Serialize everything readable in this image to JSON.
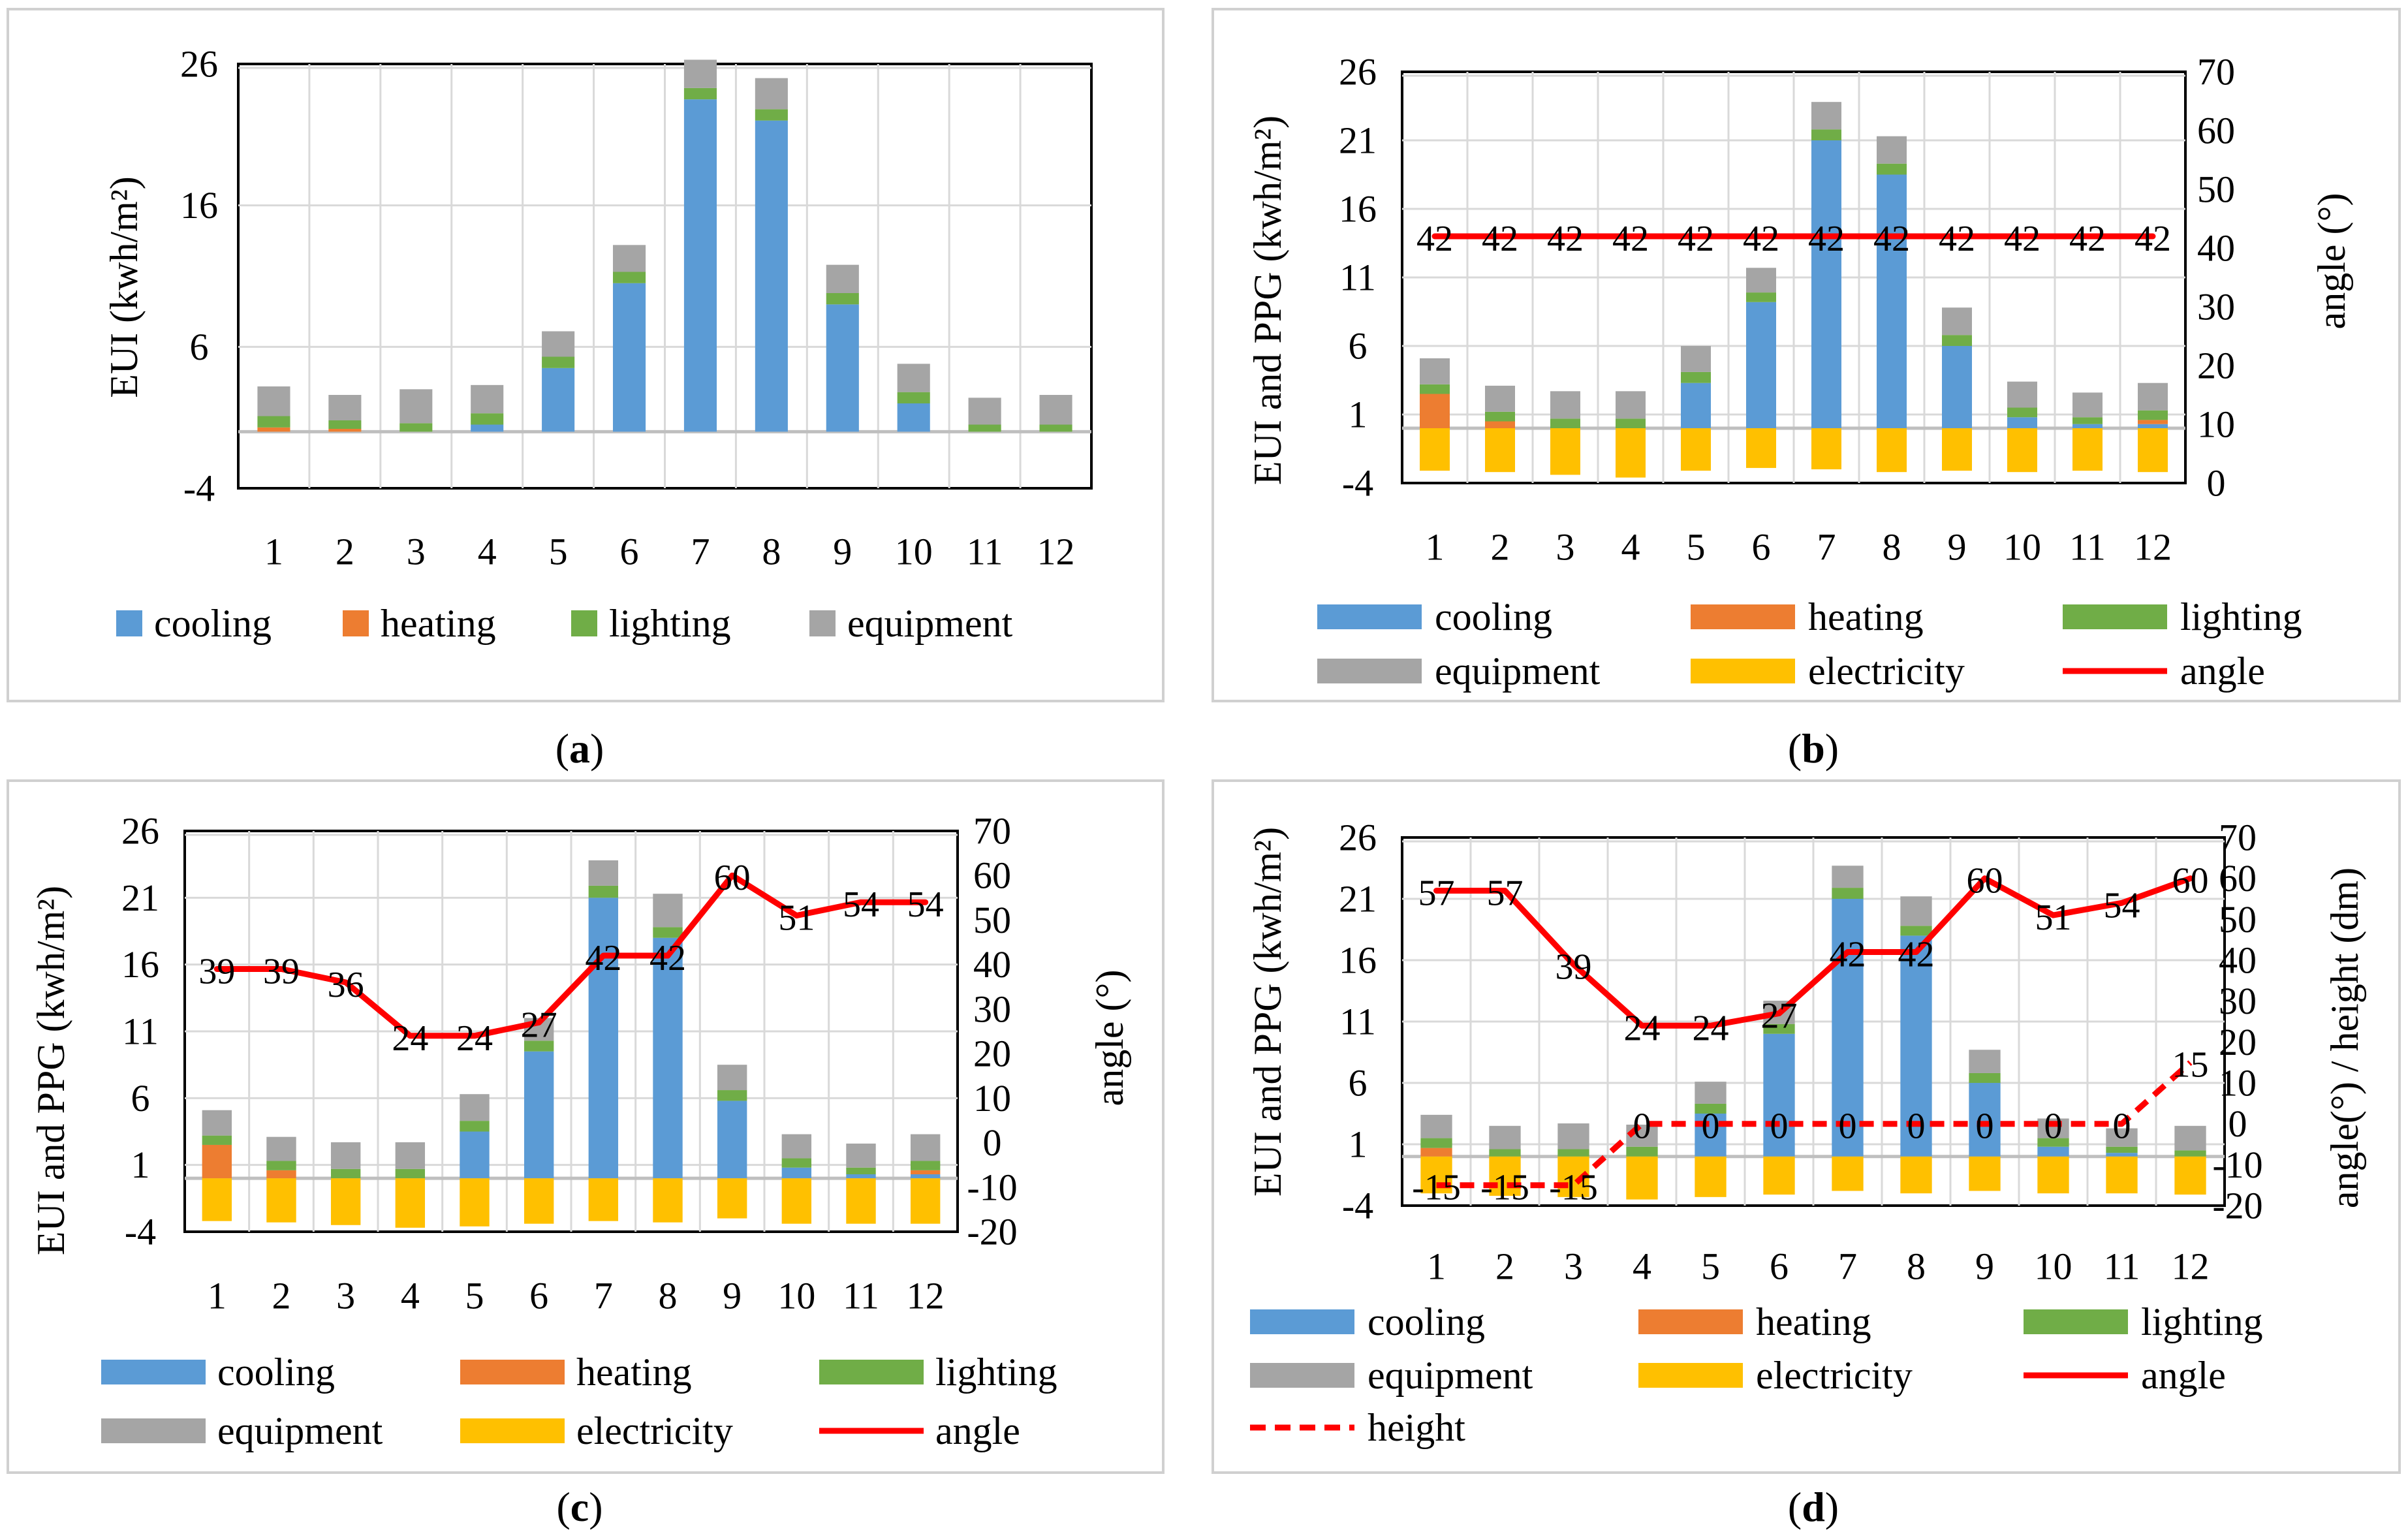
{
  "colors": {
    "cooling": "#5B9BD5",
    "heating": "#ED7D31",
    "lighting": "#70AD47",
    "equipment": "#A5A5A5",
    "electricity": "#FFC000",
    "angle": "#FF0000",
    "height": "#FF0000",
    "grid": "#D9D9D9",
    "zero": "#BFBFBF",
    "panel_border": "#D0D0D0"
  },
  "chart_data": [
    {
      "panel": "a",
      "caption": "(a)",
      "caption_letter": "a",
      "type": "bar",
      "stacked": true,
      "title": "",
      "xlabel": "",
      "ylabel": "EUI (kwh/m²)",
      "ylabel_right": "",
      "categories": [
        "1",
        "2",
        "3",
        "4",
        "5",
        "6",
        "7",
        "8",
        "9",
        "10",
        "11",
        "12"
      ],
      "ylim": [
        -4,
        26
      ],
      "yticks": [
        "-4",
        "6",
        "16",
        "26"
      ],
      "series": [
        {
          "name": "cooling",
          "key": "cooling",
          "values": [
            0,
            0,
            0,
            0.5,
            4.5,
            10.5,
            23.5,
            22,
            9,
            2,
            0,
            0
          ]
        },
        {
          "name": "heating",
          "key": "heating",
          "values": [
            0.3,
            0.2,
            0,
            0,
            0,
            0,
            0,
            0,
            0,
            0,
            0,
            0
          ]
        },
        {
          "name": "lighting",
          "key": "lighting",
          "values": [
            0.8,
            0.6,
            0.6,
            0.8,
            0.8,
            0.8,
            0.8,
            0.8,
            0.8,
            0.8,
            0.5,
            0.5
          ]
        },
        {
          "name": "equipment",
          "key": "equipment",
          "values": [
            2.1,
            1.8,
            2.4,
            2.0,
            1.8,
            1.9,
            2.0,
            2.2,
            2.0,
            2.0,
            1.9,
            2.1
          ]
        }
      ],
      "legend": [
        {
          "label": "cooling",
          "key": "cooling"
        },
        {
          "label": "heating",
          "key": "heating"
        },
        {
          "label": "lighting",
          "key": "lighting"
        },
        {
          "label": "equipment",
          "key": "equipment"
        }
      ]
    },
    {
      "panel": "b",
      "caption": "(b)",
      "caption_letter": "b",
      "type": "bar",
      "stacked": true,
      "title": "",
      "xlabel": "",
      "ylabel": "EUI and PPG (kwh/m²)",
      "ylabel_right": "angle (°)",
      "categories": [
        "1",
        "2",
        "3",
        "4",
        "5",
        "6",
        "7",
        "8",
        "9",
        "10",
        "11",
        "12"
      ],
      "ylim": [
        -4,
        26
      ],
      "yticks": [
        "-4",
        "1",
        "6",
        "11",
        "16",
        "21",
        "26"
      ],
      "ylim_right": [
        0,
        70
      ],
      "yticks_right": [
        "0",
        "10",
        "20",
        "30",
        "40",
        "50",
        "60",
        "70"
      ],
      "series": [
        {
          "name": "cooling",
          "key": "cooling",
          "values": [
            0,
            0,
            0,
            0,
            3.3,
            9.2,
            21,
            18.5,
            6,
            0.8,
            0.3,
            0.3
          ]
        },
        {
          "name": "heating",
          "key": "heating",
          "values": [
            2.5,
            0.5,
            0,
            0,
            0,
            0,
            0,
            0,
            0,
            0,
            0,
            0.3
          ]
        },
        {
          "name": "lighting",
          "key": "lighting",
          "values": [
            0.7,
            0.7,
            0.7,
            0.7,
            0.8,
            0.7,
            0.8,
            0.8,
            0.8,
            0.7,
            0.5,
            0.7
          ]
        },
        {
          "name": "equipment",
          "key": "equipment",
          "values": [
            1.9,
            1.9,
            2.0,
            2.0,
            1.9,
            1.8,
            2.0,
            2.0,
            2.0,
            1.9,
            1.8,
            2.0
          ]
        },
        {
          "name": "electricity",
          "key": "electricity",
          "values": [
            -3.1,
            -3.2,
            -3.4,
            -3.6,
            -3.1,
            -2.9,
            -3.0,
            -3.2,
            -3.1,
            -3.2,
            -3.1,
            -3.2
          ]
        }
      ],
      "lines": [
        {
          "name": "angle",
          "key": "angle",
          "axis": "right",
          "dashed": false,
          "values": [
            42,
            42,
            42,
            42,
            42,
            42,
            42,
            42,
            42,
            42,
            42,
            42
          ],
          "labels": [
            "42",
            "42",
            "42",
            "42",
            "42",
            "42",
            "42",
            "42",
            "42",
            "42",
            "42",
            "42"
          ]
        }
      ],
      "legend": [
        {
          "label": "cooling",
          "key": "cooling",
          "type": "bar"
        },
        {
          "label": "heating",
          "key": "heating",
          "type": "bar"
        },
        {
          "label": "lighting",
          "key": "lighting",
          "type": "bar"
        },
        {
          "label": "equipment",
          "key": "equipment",
          "type": "bar"
        },
        {
          "label": "electricity",
          "key": "electricity",
          "type": "bar"
        },
        {
          "label": "angle",
          "key": "angle",
          "type": "line"
        }
      ]
    },
    {
      "panel": "c",
      "caption": "(c)",
      "caption_letter": "c",
      "type": "bar",
      "stacked": true,
      "title": "",
      "xlabel": "",
      "ylabel": "EUI and PPG (kwh/m²)",
      "ylabel_right": "angle (°)",
      "categories": [
        "1",
        "2",
        "3",
        "4",
        "5",
        "6",
        "7",
        "8",
        "9",
        "10",
        "11",
        "12"
      ],
      "ylim": [
        -4,
        26
      ],
      "yticks": [
        "-4",
        "1",
        "6",
        "11",
        "16",
        "21",
        "26"
      ],
      "ylim_right": [
        -20,
        70
      ],
      "yticks_right": [
        "-20",
        "-10",
        "0",
        "10",
        "20",
        "30",
        "40",
        "50",
        "60",
        "70"
      ],
      "series": [
        {
          "name": "cooling",
          "key": "cooling",
          "values": [
            0,
            0,
            0,
            0,
            3.5,
            9.5,
            21,
            18,
            5.8,
            0.8,
            0.3,
            0.3
          ]
        },
        {
          "name": "heating",
          "key": "heating",
          "values": [
            2.5,
            0.6,
            0,
            0,
            0,
            0,
            0,
            0,
            0,
            0,
            0,
            0.3
          ]
        },
        {
          "name": "lighting",
          "key": "lighting",
          "values": [
            0.7,
            0.7,
            0.7,
            0.7,
            0.8,
            0.8,
            0.9,
            0.8,
            0.8,
            0.7,
            0.5,
            0.7
          ]
        },
        {
          "name": "equipment",
          "key": "equipment",
          "values": [
            1.9,
            1.8,
            2.0,
            2.0,
            2.0,
            1.7,
            1.9,
            2.5,
            1.9,
            1.8,
            1.8,
            2.0
          ]
        },
        {
          "name": "electricity",
          "key": "electricity",
          "values": [
            -3.2,
            -3.3,
            -3.5,
            -3.7,
            -3.6,
            -3.4,
            -3.2,
            -3.3,
            -3.0,
            -3.4,
            -3.4,
            -3.4
          ]
        }
      ],
      "lines": [
        {
          "name": "angle",
          "key": "angle",
          "axis": "right",
          "dashed": false,
          "values": [
            39,
            39,
            36,
            24,
            24,
            27,
            42,
            42,
            60,
            51,
            54,
            54
          ],
          "labels": [
            "39",
            "39",
            "36",
            "24",
            "24",
            "27",
            "42",
            "42",
            "60",
            "51",
            "54",
            "54"
          ]
        }
      ],
      "legend": [
        {
          "label": "cooling",
          "key": "cooling",
          "type": "bar"
        },
        {
          "label": "heating",
          "key": "heating",
          "type": "bar"
        },
        {
          "label": "lighting",
          "key": "lighting",
          "type": "bar"
        },
        {
          "label": "equipment",
          "key": "equipment",
          "type": "bar"
        },
        {
          "label": "electricity",
          "key": "electricity",
          "type": "bar"
        },
        {
          "label": "angle",
          "key": "angle",
          "type": "line"
        }
      ]
    },
    {
      "panel": "d",
      "caption": "(d)",
      "caption_letter": "d",
      "type": "bar",
      "stacked": true,
      "title": "",
      "xlabel": "",
      "ylabel": "EUI and PPG (kwh/m²)",
      "ylabel_right": "angle(°) / height (dm)",
      "categories": [
        "1",
        "2",
        "3",
        "4",
        "5",
        "6",
        "7",
        "8",
        "9",
        "10",
        "11",
        "12"
      ],
      "ylim": [
        -4,
        26
      ],
      "yticks": [
        "-4",
        "1",
        "6",
        "11",
        "16",
        "21",
        "26"
      ],
      "ylim_right": [
        -20,
        70
      ],
      "yticks_right": [
        "-20",
        "-10",
        "0",
        "10",
        "20",
        "30",
        "40",
        "50",
        "60",
        "70"
      ],
      "series": [
        {
          "name": "cooling",
          "key": "cooling",
          "values": [
            0,
            0,
            0,
            0,
            3.5,
            10,
            21,
            18,
            6,
            0.8,
            0.3,
            0
          ]
        },
        {
          "name": "heating",
          "key": "heating",
          "values": [
            0.7,
            0,
            0,
            0,
            0,
            0,
            0,
            0,
            0,
            0,
            0,
            0
          ]
        },
        {
          "name": "lighting",
          "key": "lighting",
          "values": [
            0.8,
            0.6,
            0.6,
            0.8,
            0.8,
            0.8,
            0.9,
            0.8,
            0.8,
            0.7,
            0.5,
            0.5
          ]
        },
        {
          "name": "equipment",
          "key": "equipment",
          "values": [
            1.9,
            1.9,
            2.1,
            1.8,
            1.8,
            1.9,
            1.8,
            2.4,
            1.9,
            1.6,
            1.5,
            2.0
          ]
        },
        {
          "name": "electricity",
          "key": "electricity",
          "values": [
            -3.0,
            -3.2,
            -3.3,
            -3.5,
            -3.3,
            -3.1,
            -2.8,
            -3.0,
            -2.8,
            -3.0,
            -3.0,
            -3.1
          ]
        }
      ],
      "lines": [
        {
          "name": "angle",
          "key": "angle",
          "axis": "right",
          "dashed": false,
          "values": [
            57,
            57,
            39,
            24,
            24,
            27,
            42,
            42,
            60,
            51,
            54,
            60
          ],
          "labels": [
            "57",
            "57",
            "39",
            "24",
            "24",
            "27",
            "42",
            "42",
            "60",
            "51",
            "54",
            "60"
          ]
        },
        {
          "name": "height",
          "key": "height",
          "axis": "right",
          "dashed": true,
          "values": [
            -15,
            -15,
            -15,
            0,
            0,
            0,
            0,
            0,
            0,
            0,
            0,
            15
          ],
          "labels": [
            "-15",
            "-15",
            "-15",
            "0",
            "0",
            "0",
            "0",
            "0",
            "0",
            "0",
            "0",
            "15"
          ]
        }
      ],
      "legend": [
        {
          "label": "cooling",
          "key": "cooling",
          "type": "bar"
        },
        {
          "label": "heating",
          "key": "heating",
          "type": "bar"
        },
        {
          "label": "lighting",
          "key": "lighting",
          "type": "bar"
        },
        {
          "label": "equipment",
          "key": "equipment",
          "type": "bar"
        },
        {
          "label": "electricity",
          "key": "electricity",
          "type": "bar"
        },
        {
          "label": "angle",
          "key": "angle",
          "type": "line"
        },
        {
          "label": "height",
          "key": "height",
          "type": "dashed"
        }
      ]
    }
  ]
}
